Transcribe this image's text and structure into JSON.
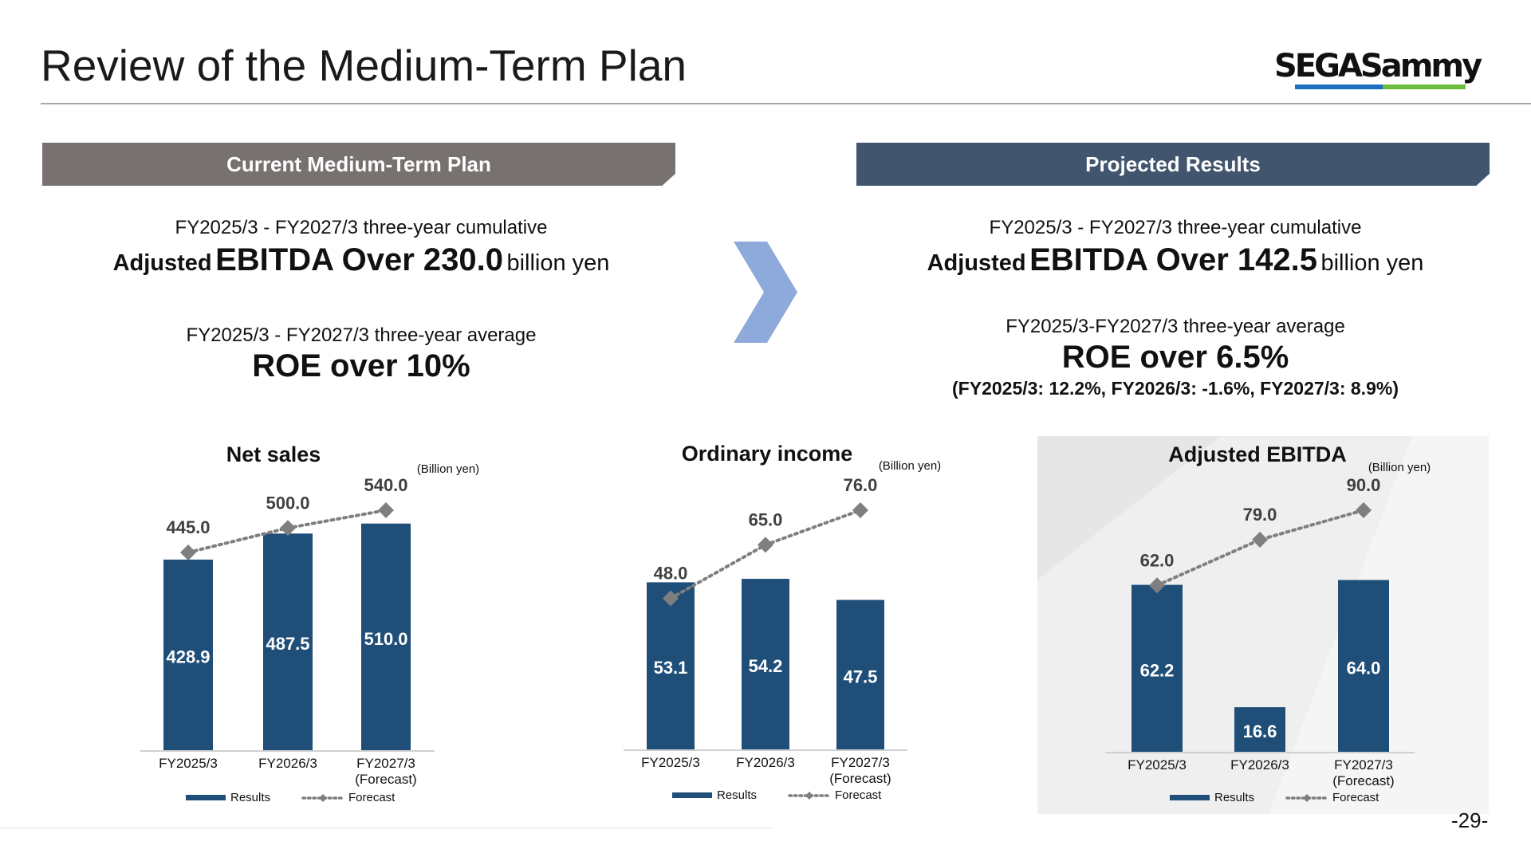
{
  "header": {
    "title": "Review of the Medium-Term Plan",
    "logo_text": "SEGASammy"
  },
  "left": {
    "banner": "Current Medium-Term Plan",
    "cum_label": "FY2025/3 - FY2027/3 three-year cumulative",
    "ebitda_pre": "Adjusted",
    "ebitda_main": "EBITDA Over 230.0",
    "ebitda_unit": "billion yen",
    "avg_label": "FY2025/3 - FY2027/3 three-year average",
    "roe": "ROE over 10%"
  },
  "right": {
    "banner": "Projected Results",
    "cum_label": "FY2025/3 - FY2027/3 three-year cumulative",
    "ebitda_pre": "Adjusted",
    "ebitda_main": "EBITDA Over 142.5",
    "ebitda_unit": "billion yen",
    "avg_label": "FY2025/3-FY2027/3 three-year average",
    "roe": "ROE over 6.5%",
    "roe_detail": "(FY2025/3: 12.2%, FY2026/3: -1.6%, FY2027/3: 8.9%)"
  },
  "page_number": "-29-",
  "colors": {
    "bar": "#1f4e79",
    "forecast": "#7f7f7f",
    "left_banner": "#777270",
    "right_banner": "#42556e",
    "arrow": "#8eaadb"
  },
  "chart_data": [
    {
      "type": "bar",
      "title": "Net sales",
      "unit_label": "(Billion yen)",
      "categories": [
        "FY2025/3",
        "FY2026/3",
        "FY2027/3"
      ],
      "category_sub": [
        "",
        "",
        "(Forecast)"
      ],
      "series": [
        {
          "name": "Results",
          "type": "bar",
          "values": [
            428.9,
            487.5,
            510.0
          ],
          "labels": [
            "428.9",
            "487.5",
            "510.0"
          ]
        },
        {
          "name": "Forecast",
          "type": "line",
          "values": [
            445.0,
            500.0,
            540.0
          ],
          "labels": [
            "445.0",
            "500.0",
            "540.0"
          ]
        }
      ],
      "ylim": [
        0,
        560
      ],
      "legend": "bottom"
    },
    {
      "type": "bar",
      "title": "Ordinary income",
      "unit_label": "(Billion yen)",
      "categories": [
        "FY2025/3",
        "FY2026/3",
        "FY2027/3"
      ],
      "category_sub": [
        "",
        "",
        "(Forecast)"
      ],
      "series": [
        {
          "name": "Results",
          "type": "bar",
          "values": [
            53.1,
            54.2,
            47.5
          ],
          "labels": [
            "53.1",
            "54.2",
            "47.5"
          ]
        },
        {
          "name": "Forecast",
          "type": "line",
          "values": [
            48.0,
            65.0,
            76.0
          ],
          "labels": [
            "48.0",
            "65.0",
            "76.0"
          ]
        }
      ],
      "ylim": [
        0,
        80
      ],
      "legend": "bottom"
    },
    {
      "type": "bar",
      "title": "Adjusted EBITDA",
      "unit_label": "(Billion yen)",
      "categories": [
        "FY2025/3",
        "FY2026/3",
        "FY2027/3"
      ],
      "category_sub": [
        "",
        "",
        "(Forecast)"
      ],
      "series": [
        {
          "name": "Results",
          "type": "bar",
          "values": [
            62.2,
            16.6,
            64.0
          ],
          "labels": [
            "62.2",
            "16.6",
            "64.0"
          ]
        },
        {
          "name": "Forecast",
          "type": "line",
          "values": [
            62.0,
            79.0,
            90.0
          ],
          "labels": [
            "62.0",
            "79.0",
            "90.0"
          ]
        }
      ],
      "ylim": [
        0,
        95
      ],
      "legend": "bottom"
    }
  ]
}
